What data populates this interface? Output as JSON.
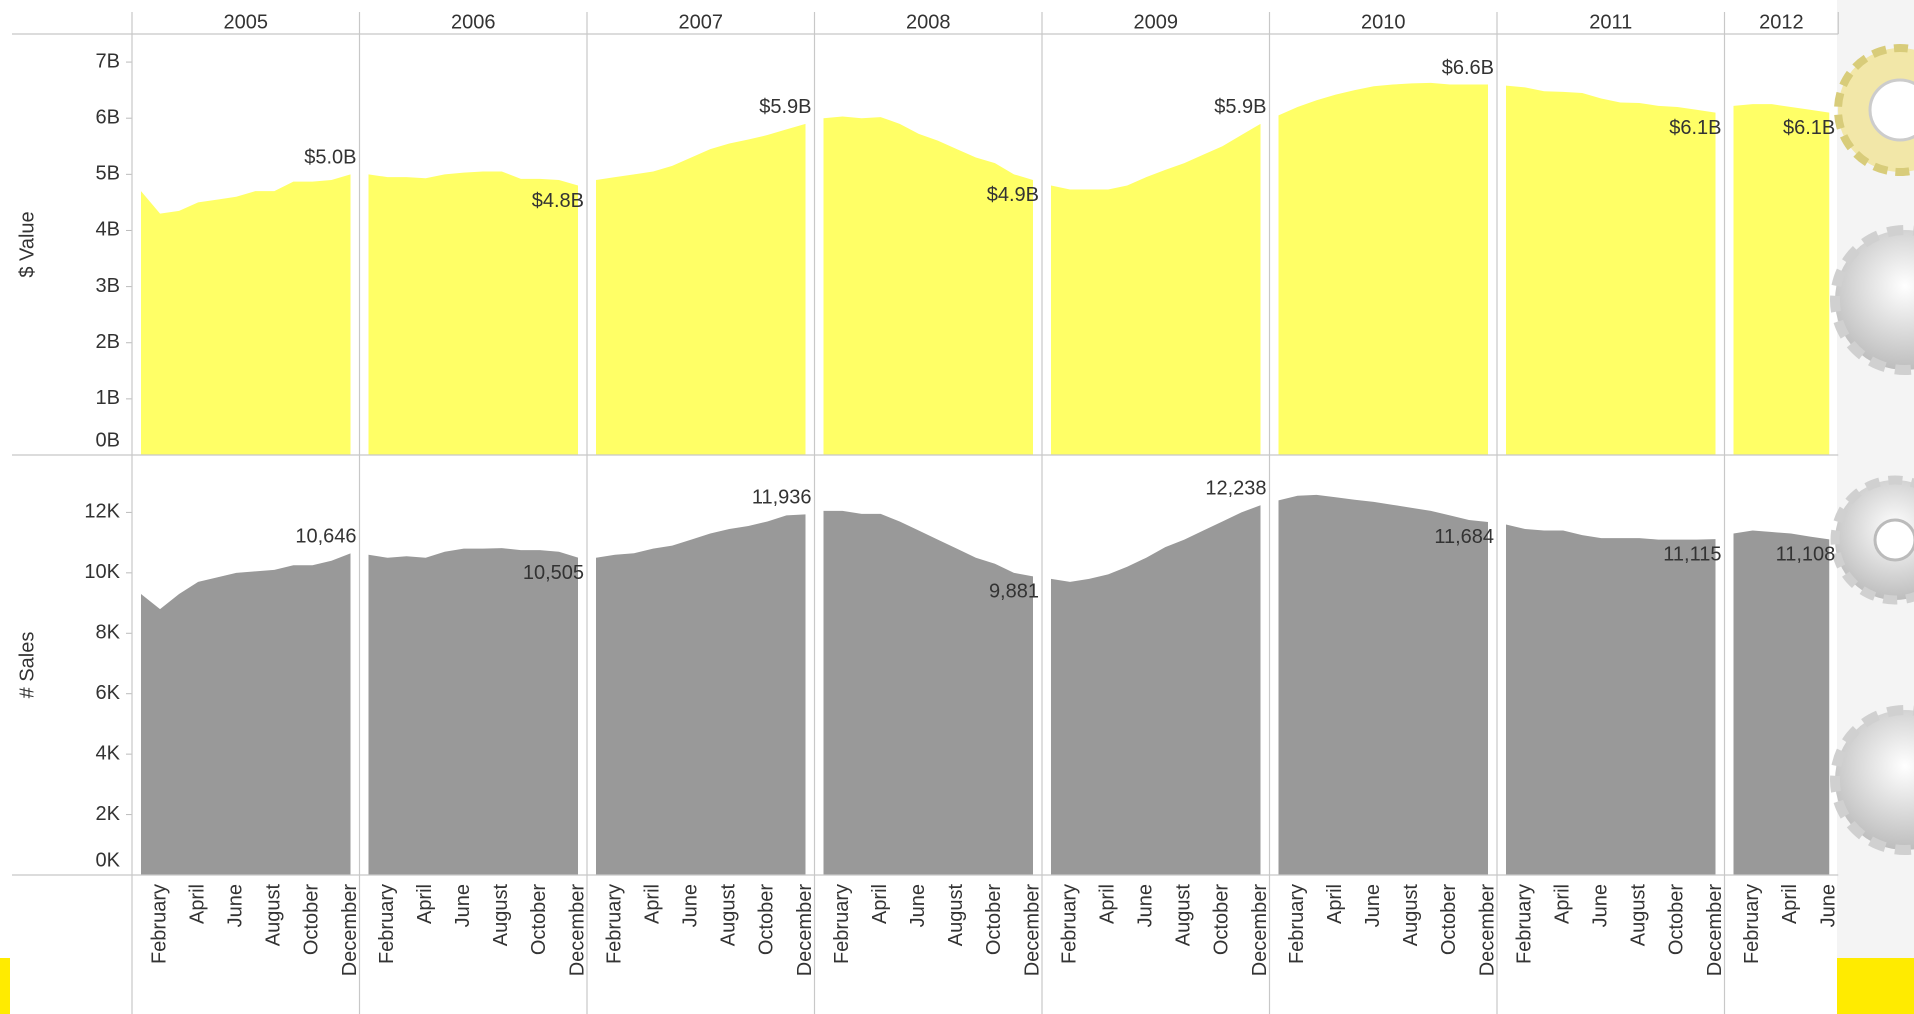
{
  "chart_data": {
    "type": "area",
    "facets": [
      {
        "label": "2005",
        "categories": [
          null,
          "February",
          null,
          "April",
          null,
          "June",
          null,
          "August",
          null,
          "October",
          null,
          "December"
        ]
      },
      {
        "label": "2006",
        "categories": [
          null,
          "February",
          null,
          "April",
          null,
          "June",
          null,
          "August",
          null,
          "October",
          null,
          "December"
        ]
      },
      {
        "label": "2007",
        "categories": [
          null,
          "February",
          null,
          "April",
          null,
          "June",
          null,
          "August",
          null,
          "October",
          null,
          "December"
        ]
      },
      {
        "label": "2008",
        "categories": [
          null,
          "February",
          null,
          "April",
          null,
          "June",
          null,
          "August",
          null,
          "October",
          null,
          "December"
        ]
      },
      {
        "label": "2009",
        "categories": [
          null,
          "February",
          null,
          "April",
          null,
          "June",
          null,
          "August",
          null,
          "October",
          null,
          "December"
        ]
      },
      {
        "label": "2010",
        "categories": [
          null,
          "February",
          null,
          "April",
          null,
          "June",
          null,
          "August",
          null,
          "October",
          null,
          "December"
        ]
      },
      {
        "label": "2011",
        "categories": [
          null,
          "February",
          null,
          "April",
          null,
          "June",
          null,
          "August",
          null,
          "October",
          null,
          "December"
        ]
      },
      {
        "label": "2012",
        "categories": [
          null,
          "February",
          null,
          "April",
          null,
          "June"
        ]
      }
    ],
    "rows": [
      {
        "ylabel": "$ Value",
        "color": "#ffff66",
        "ylim": [
          0,
          7.5
        ],
        "yticks": [
          {
            "value": 0,
            "label": "0B"
          },
          {
            "value": 1,
            "label": "1B"
          },
          {
            "value": 2,
            "label": "2B"
          },
          {
            "value": 3,
            "label": "3B"
          },
          {
            "value": 4,
            "label": "4B"
          },
          {
            "value": 5,
            "label": "5B"
          },
          {
            "value": 6,
            "label": "6B"
          },
          {
            "value": 7,
            "label": "7B"
          }
        ],
        "values": [
          [
            4.7,
            4.3,
            4.35,
            4.5,
            4.55,
            4.6,
            4.7,
            4.7,
            4.87,
            4.87,
            4.9,
            5.0
          ],
          [
            5.0,
            4.95,
            4.95,
            4.93,
            5.0,
            5.03,
            5.05,
            5.05,
            4.92,
            4.92,
            4.9,
            4.8
          ],
          [
            4.9,
            4.95,
            5.0,
            5.05,
            5.15,
            5.3,
            5.45,
            5.55,
            5.62,
            5.7,
            5.8,
            5.9
          ],
          [
            6.0,
            6.03,
            6.0,
            6.02,
            5.9,
            5.72,
            5.6,
            5.45,
            5.3,
            5.2,
            5.0,
            4.9
          ],
          [
            4.8,
            4.73,
            4.73,
            4.73,
            4.8,
            4.95,
            5.08,
            5.2,
            5.35,
            5.5,
            5.7,
            5.9
          ],
          [
            6.05,
            6.2,
            6.32,
            6.42,
            6.5,
            6.57,
            6.6,
            6.62,
            6.63,
            6.6,
            6.6,
            6.6
          ],
          [
            6.58,
            6.55,
            6.48,
            6.47,
            6.45,
            6.35,
            6.28,
            6.27,
            6.22,
            6.2,
            6.15,
            6.1
          ],
          [
            6.22,
            6.25,
            6.25,
            6.2,
            6.15,
            6.1
          ]
        ],
        "value_labels": [
          [
            null,
            null,
            null,
            null,
            null,
            null,
            null,
            null,
            null,
            null,
            null,
            "$5.0B"
          ],
          [
            null,
            null,
            null,
            null,
            null,
            null,
            null,
            null,
            null,
            null,
            null,
            "$4.8B"
          ],
          [
            null,
            null,
            null,
            null,
            null,
            null,
            null,
            null,
            null,
            null,
            null,
            "$5.9B"
          ],
          [
            null,
            null,
            null,
            null,
            null,
            null,
            null,
            null,
            null,
            null,
            null,
            "$4.9B"
          ],
          [
            null,
            null,
            null,
            null,
            null,
            null,
            null,
            null,
            null,
            null,
            null,
            "$5.9B"
          ],
          [
            null,
            null,
            null,
            null,
            null,
            null,
            null,
            null,
            null,
            null,
            null,
            "$6.6B"
          ],
          [
            null,
            null,
            null,
            null,
            null,
            null,
            null,
            null,
            null,
            null,
            null,
            "$6.1B"
          ],
          [
            null,
            null,
            null,
            null,
            null,
            "$6.1B"
          ]
        ]
      },
      {
        "ylabel": "# Sales",
        "color": "#999999",
        "ylim": [
          0,
          13900
        ],
        "yticks": [
          {
            "value": 0,
            "label": "0K"
          },
          {
            "value": 2000,
            "label": "2K"
          },
          {
            "value": 4000,
            "label": "4K"
          },
          {
            "value": 6000,
            "label": "6K"
          },
          {
            "value": 8000,
            "label": "8K"
          },
          {
            "value": 10000,
            "label": "10K"
          },
          {
            "value": 12000,
            "label": "12K"
          }
        ],
        "values": [
          [
            9300,
            8800,
            9300,
            9700,
            9850,
            10000,
            10050,
            10100,
            10250,
            10250,
            10400,
            10646
          ],
          [
            10600,
            10500,
            10550,
            10500,
            10700,
            10800,
            10800,
            10820,
            10750,
            10750,
            10700,
            10505
          ],
          [
            10500,
            10600,
            10650,
            10800,
            10900,
            11100,
            11300,
            11450,
            11550,
            11700,
            11900,
            11936
          ],
          [
            12050,
            12050,
            11950,
            11950,
            11700,
            11400,
            11100,
            10800,
            10500,
            10300,
            10000,
            9881
          ],
          [
            9800,
            9700,
            9800,
            9950,
            10200,
            10500,
            10850,
            11100,
            11400,
            11700,
            12000,
            12238
          ],
          [
            12400,
            12550,
            12580,
            12500,
            12420,
            12350,
            12250,
            12150,
            12050,
            11900,
            11750,
            11684
          ],
          [
            11600,
            11450,
            11400,
            11400,
            11250,
            11150,
            11150,
            11150,
            11100,
            11100,
            11100,
            11115
          ],
          [
            11300,
            11400,
            11350,
            11300,
            11200,
            11108
          ]
        ],
        "value_labels": [
          [
            null,
            null,
            null,
            null,
            null,
            null,
            null,
            null,
            null,
            null,
            null,
            "10,646"
          ],
          [
            null,
            null,
            null,
            null,
            null,
            null,
            null,
            null,
            null,
            null,
            null,
            "10,505"
          ],
          [
            null,
            null,
            null,
            null,
            null,
            null,
            null,
            null,
            null,
            null,
            null,
            "11,936"
          ],
          [
            null,
            null,
            null,
            null,
            null,
            null,
            null,
            null,
            null,
            null,
            null,
            "9,881"
          ],
          [
            null,
            null,
            null,
            null,
            null,
            null,
            null,
            null,
            null,
            null,
            null,
            "12,238"
          ],
          [
            null,
            null,
            null,
            null,
            null,
            null,
            null,
            null,
            null,
            null,
            null,
            "11,684"
          ],
          [
            null,
            null,
            null,
            null,
            null,
            null,
            null,
            null,
            null,
            null,
            null,
            "11,115"
          ],
          [
            null,
            null,
            null,
            null,
            null,
            "11,108"
          ]
        ]
      }
    ]
  }
}
